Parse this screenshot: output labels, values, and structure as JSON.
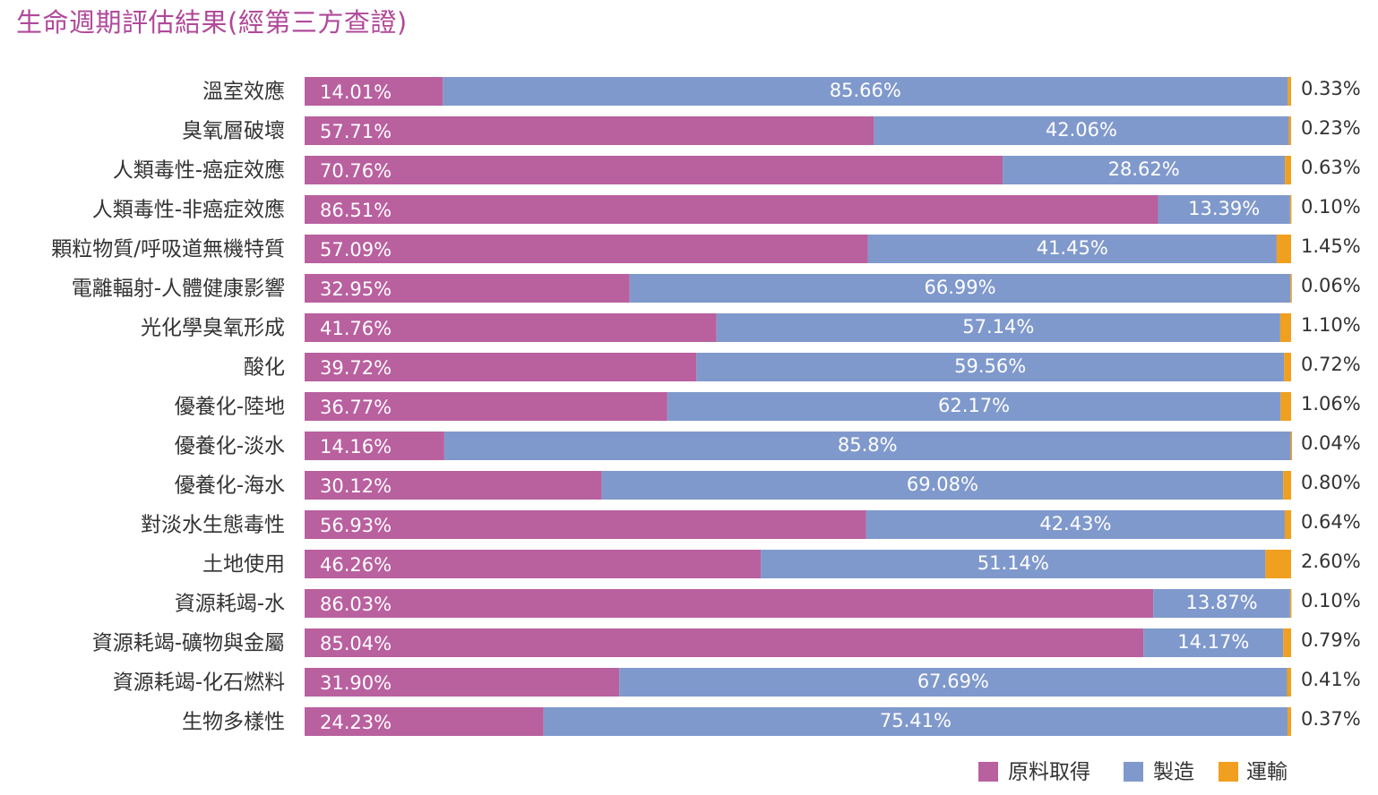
{
  "title": "生命週期評估結果(經第三方查證)",
  "chart_data": {
    "type": "bar",
    "orientation": "horizontal",
    "stacked": true,
    "normalized": true,
    "categories": [
      "溫室效應",
      "臭氧層破壞",
      "人類毒性-癌症效應",
      "人類毒性-非癌症效應",
      "顆粒物質/呼吸道無機特質",
      "電離輻射-人體健康影響",
      "光化學臭氧形成",
      "酸化",
      "優養化-陸地",
      "優養化-淡水",
      "優養化-海水",
      "對淡水生態毒性",
      "土地使用",
      "資源耗竭-水",
      "資源耗竭-礦物與金屬",
      "資源耗竭-化石燃料",
      "生物多樣性"
    ],
    "series": [
      {
        "name": "原料取得",
        "color": "#b9609f",
        "values": [
          14.01,
          57.71,
          70.76,
          86.51,
          57.09,
          32.95,
          41.76,
          39.72,
          36.77,
          14.16,
          30.12,
          56.93,
          46.26,
          86.03,
          85.04,
          31.9,
          24.23
        ],
        "labels": [
          "14.01%",
          "57.71%",
          "70.76%",
          "86.51%",
          "57.09%",
          "32.95%",
          "41.76%",
          "39.72%",
          "36.77%",
          "14.16%",
          "30.12%",
          "56.93%",
          "46.26%",
          "86.03%",
          "85.04%",
          "31.90%",
          "24.23%"
        ]
      },
      {
        "name": "製造",
        "color": "#8099cc",
        "values": [
          85.66,
          42.06,
          28.62,
          13.39,
          41.45,
          66.99,
          57.14,
          59.56,
          62.17,
          85.8,
          69.08,
          42.43,
          51.14,
          13.87,
          14.17,
          67.69,
          75.41
        ],
        "labels": [
          "85.66%",
          "42.06%",
          "28.62%",
          "13.39%",
          "41.45%",
          "66.99%",
          "57.14%",
          "59.56%",
          "62.17%",
          "85.8%",
          "69.08%",
          "42.43%",
          "51.14%",
          "13.87%",
          "14.17%",
          "67.69%",
          "75.41%"
        ]
      },
      {
        "name": "運輸",
        "color": "#f0a01e",
        "values": [
          0.33,
          0.23,
          0.63,
          0.1,
          1.45,
          0.06,
          1.1,
          0.72,
          1.06,
          0.04,
          0.8,
          0.64,
          2.6,
          0.1,
          0.79,
          0.41,
          0.37
        ],
        "labels": [
          "0.33%",
          "0.23%",
          "0.63%",
          "0.10%",
          "1.45%",
          "0.06%",
          "1.10%",
          "0.72%",
          "1.06%",
          "0.04%",
          "0.80%",
          "0.64%",
          "2.60%",
          "0.10%",
          "0.79%",
          "0.41%",
          "0.37%"
        ]
      }
    ],
    "xlim": [
      0,
      100
    ],
    "grid": false,
    "legend_position": "bottom-right"
  }
}
